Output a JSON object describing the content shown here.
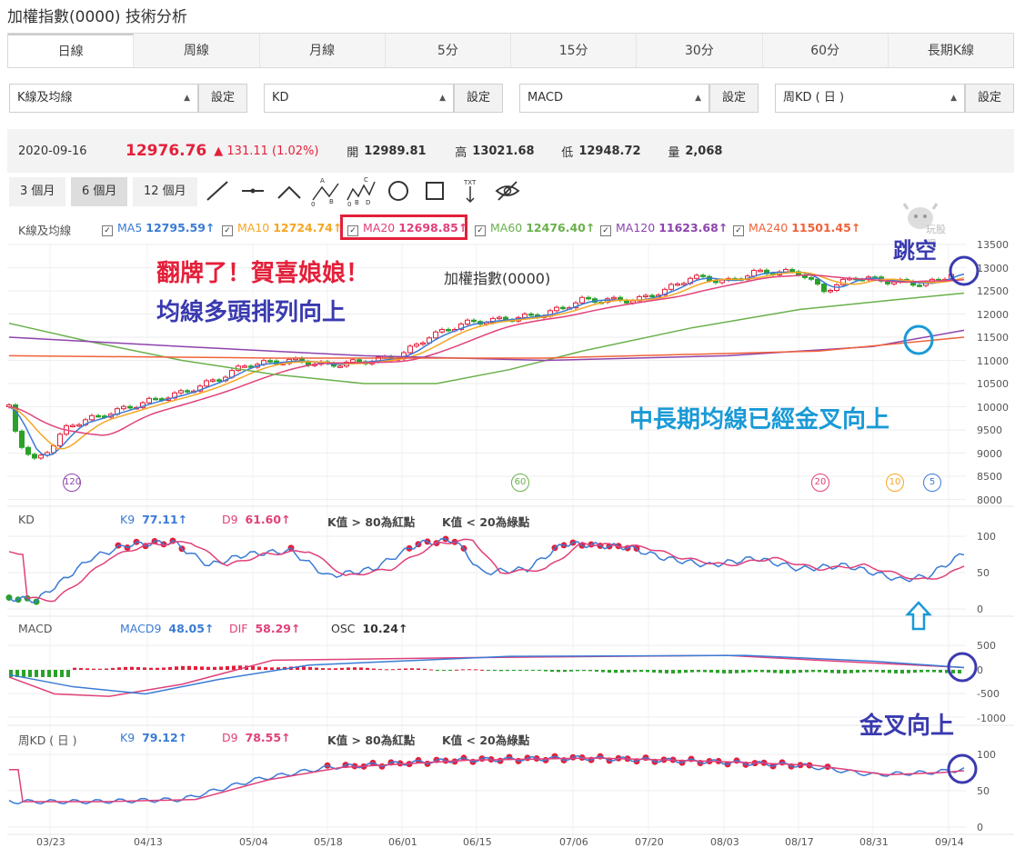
{
  "page": {
    "title": "加權指數(0000) 技術分析"
  },
  "tabs": [
    {
      "label": "日線",
      "active": true
    },
    {
      "label": "周線"
    },
    {
      "label": "月線"
    },
    {
      "label": "5分"
    },
    {
      "label": "15分"
    },
    {
      "label": "30分"
    },
    {
      "label": "60分"
    },
    {
      "label": "長期K線"
    }
  ],
  "selectors": [
    {
      "value": "K線及均線",
      "button": "設定"
    },
    {
      "value": "KD",
      "button": "設定"
    },
    {
      "value": "MACD",
      "button": "設定"
    },
    {
      "value": "周KD ( 日 )",
      "button": "設定"
    }
  ],
  "quote": {
    "date": "2020-09-16",
    "price": "12976.76",
    "change": "▲ 131.11 (1.02%)",
    "open_label": "開",
    "open": "12989.81",
    "high_label": "高",
    "high": "13021.68",
    "low_label": "低",
    "low": "12948.72",
    "vol_label": "量",
    "vol": "2,068"
  },
  "periods": [
    "3 個月",
    "6 個月",
    "12 個月"
  ],
  "tools": [
    "line-tool-icon",
    "horizontal-line-tool-icon",
    "peak-tool-icon",
    "abc-pattern-tool-icon",
    "abcde-pattern-tool-icon",
    "circle-tool-icon",
    "rectangle-tool-icon",
    "text-tool-icon",
    "hide-eye-icon"
  ],
  "ma_legend": {
    "label": "K線及均線",
    "items": [
      {
        "name": "MA5",
        "value": "12795.59↑",
        "color": "#3a7bd5"
      },
      {
        "name": "MA10",
        "value": "12724.74↑",
        "color": "#f5a623"
      },
      {
        "name": "MA20",
        "value": "12698.85↑",
        "color": "#e0407a"
      },
      {
        "name": "MA60",
        "value": "12476.40↑",
        "color": "#6ab04c"
      },
      {
        "name": "MA120",
        "value": "11623.68↑",
        "color": "#8e44ad"
      },
      {
        "name": "MA240",
        "value": "11501.45↑",
        "color": "#f0623a"
      }
    ]
  },
  "watermark": "玩股網",
  "annotations": {
    "flip": "翻牌了！賀喜娘娘！",
    "bull": "均線多頭排列向上",
    "gap": "跳空",
    "cross_long": "中長期均線已經金叉向上",
    "cross_up": "金叉向上"
  },
  "chart_data": [
    {
      "type": "candlestick",
      "title": "加權指數(0000)",
      "y_ticks": [
        "13500",
        "13000",
        "12500",
        "12000",
        "11500",
        "11000",
        "10500",
        "10000",
        "9500",
        "9000",
        "8500",
        "8000"
      ],
      "x_labels": [
        "03/23",
        "04/13",
        "05/04",
        "05/18",
        "06/01",
        "06/15",
        "07/06",
        "07/20",
        "08/03",
        "08/17",
        "08/31",
        "09/14"
      ],
      "markers": [
        "120",
        "60",
        "20",
        "10",
        "5"
      ],
      "series": [
        {
          "name": "MA5",
          "color": "#3a7bd5"
        },
        {
          "name": "MA10",
          "color": "#f5a623"
        },
        {
          "name": "MA20",
          "color": "#e0407a"
        },
        {
          "name": "MA60",
          "color": "#6ab04c"
        },
        {
          "name": "MA120",
          "color": "#8e44ad"
        },
        {
          "name": "MA240",
          "color": "#f0623a"
        }
      ]
    },
    {
      "type": "line",
      "label": "KD",
      "legend": [
        {
          "name": "K9",
          "value": "77.11↑",
          "color": "#3a7bd5"
        },
        {
          "name": "D9",
          "value": "61.60↑",
          "color": "#e0407a"
        }
      ],
      "notes": [
        "K值 > 80為紅點",
        "K值 < 20為綠點"
      ],
      "y_ticks": [
        "100",
        "50",
        "0"
      ]
    },
    {
      "type": "bar",
      "label": "MACD",
      "legend": [
        {
          "name": "MACD9",
          "value": "48.05↑",
          "color": "#3a7bd5"
        },
        {
          "name": "DIF",
          "value": "58.29↑",
          "color": "#e0407a"
        },
        {
          "name": "OSC",
          "value": "10.24↑",
          "color": "#333"
        }
      ],
      "y_ticks": [
        "500",
        "0",
        "-500",
        "-1000"
      ]
    },
    {
      "type": "line",
      "label": "周KD ( 日 )",
      "legend": [
        {
          "name": "K9",
          "value": "79.12↑",
          "color": "#3a7bd5"
        },
        {
          "name": "D9",
          "value": "78.55↑",
          "color": "#e0407a"
        }
      ],
      "notes": [
        "K值 > 80為紅點",
        "K值 < 20為綠點"
      ],
      "y_ticks": [
        "100",
        "50",
        "0"
      ]
    }
  ]
}
